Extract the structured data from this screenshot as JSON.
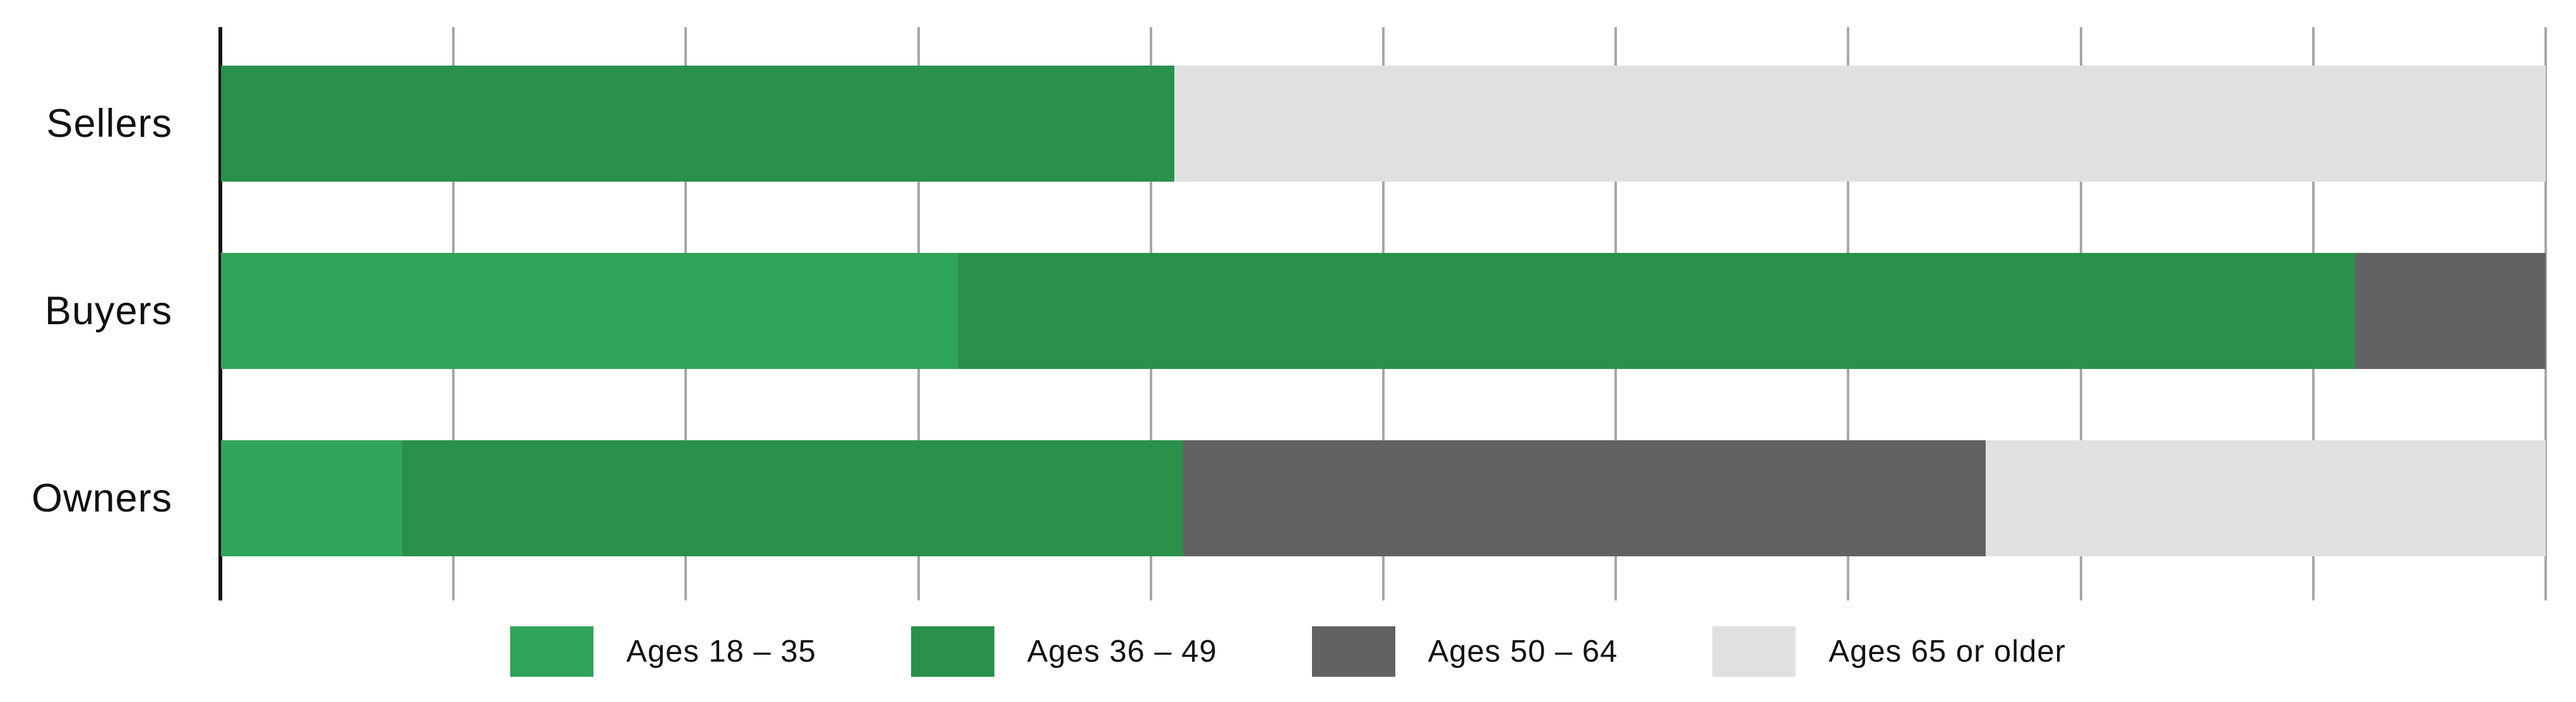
{
  "chart_data": {
    "type": "bar",
    "orientation": "horizontal",
    "stacked": true,
    "title": "",
    "xlabel": "",
    "ylabel": "",
    "categories": [
      "Sellers",
      "Buyers",
      "Owners"
    ],
    "series": [
      {
        "name": "Ages 18 – 35",
        "color": "#30a45a",
        "values": [
          0,
          31.7,
          7.8
        ]
      },
      {
        "name": "Ages 36 – 49",
        "color": "#2a914d",
        "values": [
          41.0,
          60.1,
          33.6
        ]
      },
      {
        "name": "Ages 50 – 64",
        "color": "#626262",
        "values": [
          0,
          8.2,
          34.5
        ]
      },
      {
        "name": "Ages 65 or older",
        "color": "#e0e0e0",
        "values": [
          59.0,
          0,
          24.1
        ]
      }
    ],
    "xlim": [
      0,
      100
    ],
    "x_unit": "percent of bar",
    "gridlines": {
      "shown": true,
      "interval_percent": 10,
      "color": "#a7a7a7"
    },
    "axis_color": "#111111",
    "legend_position": "bottom",
    "tick_labels_shown": false,
    "data_labels_shown": false
  }
}
